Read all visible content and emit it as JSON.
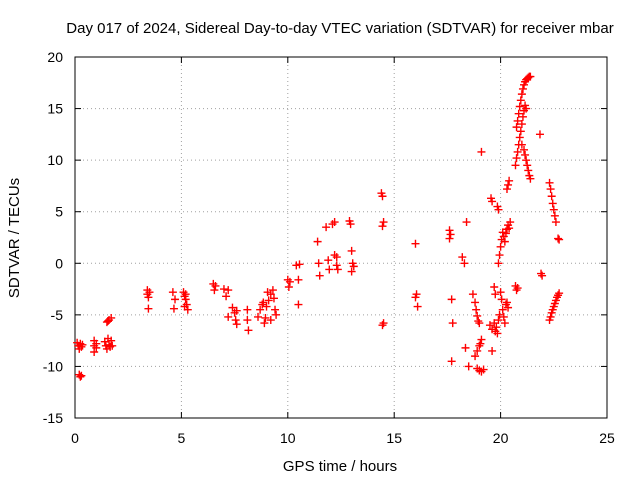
{
  "chart_data": {
    "type": "scatter",
    "title": "Day 017 of 2024, Sidereal Day-to-day VTEC variation (SDTVAR) for receiver mbar",
    "xlabel": "GPS time / hours",
    "ylabel": "SDTVAR / TECUs",
    "xlim": [
      0,
      25
    ],
    "ylim": [
      -15,
      20
    ],
    "xticks": [
      0,
      5,
      10,
      15,
      20,
      25
    ],
    "yticks": [
      -15,
      -10,
      -5,
      0,
      5,
      10,
      15,
      20
    ],
    "x_tick_labels": [
      "0",
      "5",
      "10",
      "15",
      "20",
      "25"
    ],
    "y_tick_labels": [
      "-15",
      "-10",
      "-5",
      "0",
      "5",
      "10",
      "15",
      "20"
    ],
    "grid": true,
    "marker": "plus",
    "color": "#ff0000",
    "series": [
      {
        "name": "SDTVAR",
        "points": [
          [
            0.1,
            -7.7
          ],
          [
            0.15,
            -8.0
          ],
          [
            0.2,
            -8.3
          ],
          [
            0.25,
            -7.8
          ],
          [
            0.3,
            -8.1
          ],
          [
            0.35,
            -7.9
          ],
          [
            0.2,
            -10.8
          ],
          [
            0.25,
            -11.0
          ],
          [
            0.3,
            -10.9
          ],
          [
            0.9,
            -7.5
          ],
          [
            0.9,
            -8.0
          ],
          [
            0.9,
            -8.6
          ],
          [
            1.0,
            -7.8
          ],
          [
            1.0,
            -8.2
          ],
          [
            1.4,
            -7.6
          ],
          [
            1.45,
            -8.0
          ],
          [
            1.5,
            -8.3
          ],
          [
            1.55,
            -7.3
          ],
          [
            1.6,
            -7.9
          ],
          [
            1.65,
            -8.1
          ],
          [
            1.7,
            -7.5
          ],
          [
            1.75,
            -8.0
          ],
          [
            1.5,
            -5.7
          ],
          [
            1.55,
            -5.6
          ],
          [
            1.6,
            -5.5
          ],
          [
            1.7,
            -5.3
          ],
          [
            3.4,
            -2.6
          ],
          [
            3.4,
            -3.0
          ],
          [
            3.45,
            -3.3
          ],
          [
            3.5,
            -2.8
          ],
          [
            3.45,
            -4.4
          ],
          [
            4.6,
            -2.8
          ],
          [
            4.7,
            -3.5
          ],
          [
            4.65,
            -4.4
          ],
          [
            5.1,
            -2.8
          ],
          [
            5.15,
            -3.2
          ],
          [
            5.2,
            -3.5
          ],
          [
            5.25,
            -4.0
          ],
          [
            5.3,
            -4.5
          ],
          [
            5.15,
            -4.2
          ],
          [
            5.2,
            -3.0
          ],
          [
            6.5,
            -2.0
          ],
          [
            6.55,
            -2.6
          ],
          [
            6.6,
            -2.2
          ],
          [
            7.0,
            -2.5
          ],
          [
            7.1,
            -3.2
          ],
          [
            7.2,
            -2.6
          ],
          [
            7.4,
            -4.3
          ],
          [
            7.5,
            -4.8
          ],
          [
            7.55,
            -5.5
          ],
          [
            7.6,
            -5.9
          ],
          [
            7.2,
            -5.2
          ],
          [
            7.6,
            -4.6
          ],
          [
            8.1,
            -4.5
          ],
          [
            8.1,
            -5.5
          ],
          [
            8.15,
            -6.5
          ],
          [
            8.6,
            -5.2
          ],
          [
            8.7,
            -4.5
          ],
          [
            8.8,
            -4.0
          ],
          [
            8.85,
            -3.8
          ],
          [
            8.9,
            -5.8
          ],
          [
            9.0,
            -4.2
          ],
          [
            9.1,
            -3.6
          ],
          [
            9.2,
            -3.0
          ],
          [
            9.3,
            -2.6
          ],
          [
            9.35,
            -3.4
          ],
          [
            9.4,
            -4.5
          ],
          [
            9.45,
            -5.0
          ],
          [
            9.2,
            -5.5
          ],
          [
            8.95,
            -5.3
          ],
          [
            9.05,
            -2.8
          ],
          [
            10.0,
            -1.6
          ],
          [
            10.05,
            -2.3
          ],
          [
            10.1,
            -1.8
          ],
          [
            10.4,
            -0.2
          ],
          [
            10.5,
            -1.6
          ],
          [
            10.55,
            -0.1
          ],
          [
            10.5,
            -4.0
          ],
          [
            11.4,
            2.1
          ],
          [
            11.45,
            0.0
          ],
          [
            11.5,
            -1.2
          ],
          [
            11.8,
            3.5
          ],
          [
            11.9,
            0.3
          ],
          [
            11.95,
            -0.6
          ],
          [
            12.1,
            3.8
          ],
          [
            12.2,
            4.0
          ],
          [
            12.3,
            0.6
          ],
          [
            12.35,
            -0.6
          ],
          [
            12.2,
            0.8
          ],
          [
            12.3,
            -0.2
          ],
          [
            12.9,
            4.1
          ],
          [
            12.95,
            3.8
          ],
          [
            13.0,
            1.2
          ],
          [
            13.05,
            0.0
          ],
          [
            13.0,
            -0.8
          ],
          [
            13.1,
            -0.3
          ],
          [
            14.4,
            6.8
          ],
          [
            14.45,
            6.5
          ],
          [
            14.5,
            4.0
          ],
          [
            14.45,
            3.6
          ],
          [
            14.5,
            -5.8
          ],
          [
            14.45,
            -6.0
          ],
          [
            16.0,
            1.9
          ],
          [
            16.05,
            -3.0
          ],
          [
            16.1,
            -4.2
          ],
          [
            16.0,
            -3.3
          ],
          [
            17.6,
            3.2
          ],
          [
            17.65,
            2.8
          ],
          [
            17.7,
            -3.5
          ],
          [
            17.75,
            -5.8
          ],
          [
            17.7,
            -9.5
          ],
          [
            17.6,
            2.4
          ],
          [
            18.2,
            0.6
          ],
          [
            18.3,
            0.0
          ],
          [
            18.35,
            -8.2
          ],
          [
            18.4,
            4.0
          ],
          [
            18.5,
            -10.0
          ],
          [
            18.7,
            -3.0
          ],
          [
            18.8,
            -3.8
          ],
          [
            18.85,
            -4.5
          ],
          [
            18.9,
            -5.1
          ],
          [
            18.95,
            -5.6
          ],
          [
            19.0,
            -5.8
          ],
          [
            18.8,
            -9.0
          ],
          [
            18.9,
            -8.5
          ],
          [
            19.0,
            -8.0
          ],
          [
            19.05,
            -7.8
          ],
          [
            19.1,
            -7.4
          ],
          [
            18.9,
            -10.2
          ],
          [
            19.0,
            -10.4
          ],
          [
            19.1,
            -10.5
          ],
          [
            19.2,
            -10.3
          ],
          [
            19.1,
            10.8
          ],
          [
            19.55,
            6.3
          ],
          [
            19.6,
            6.0
          ],
          [
            19.7,
            -2.3
          ],
          [
            19.75,
            -3.0
          ],
          [
            19.5,
            -6.0
          ],
          [
            19.6,
            -6.4
          ],
          [
            19.7,
            -5.8
          ],
          [
            19.75,
            -6.6
          ],
          [
            19.8,
            -6.2
          ],
          [
            19.85,
            -6.8
          ],
          [
            19.9,
            -5.5
          ],
          [
            19.95,
            -5.0
          ],
          [
            19.6,
            -8.5
          ],
          [
            19.85,
            5.5
          ],
          [
            19.9,
            5.2
          ],
          [
            19.9,
            0.0
          ],
          [
            19.95,
            0.8
          ],
          [
            20.0,
            1.6
          ],
          [
            20.05,
            2.3
          ],
          [
            20.1,
            3.0
          ],
          [
            20.15,
            2.6
          ],
          [
            20.2,
            2.1
          ],
          [
            20.25,
            2.9
          ],
          [
            20.3,
            3.3
          ],
          [
            20.35,
            3.7
          ],
          [
            20.4,
            3.4
          ],
          [
            20.45,
            4.0
          ],
          [
            20.0,
            -2.8
          ],
          [
            20.05,
            -3.5
          ],
          [
            20.1,
            -4.5
          ],
          [
            20.15,
            -5.2
          ],
          [
            20.2,
            -5.8
          ],
          [
            20.25,
            -4.0
          ],
          [
            20.3,
            -3.8
          ],
          [
            20.35,
            -4.3
          ],
          [
            20.3,
            7.2
          ],
          [
            20.35,
            7.6
          ],
          [
            20.4,
            8.0
          ],
          [
            20.7,
            -2.2
          ],
          [
            20.75,
            -2.6
          ],
          [
            20.8,
            -2.4
          ],
          [
            20.7,
            9.5
          ],
          [
            20.75,
            10.2
          ],
          [
            20.8,
            10.8
          ],
          [
            20.85,
            11.5
          ],
          [
            20.9,
            12.2
          ],
          [
            20.95,
            12.8
          ],
          [
            21.0,
            13.5
          ],
          [
            21.05,
            14.2
          ],
          [
            21.1,
            14.8
          ],
          [
            21.15,
            15.3
          ],
          [
            21.2,
            15.0
          ],
          [
            20.75,
            13.2
          ],
          [
            20.8,
            13.8
          ],
          [
            20.85,
            14.5
          ],
          [
            20.9,
            15.2
          ],
          [
            20.95,
            15.8
          ],
          [
            21.0,
            16.4
          ],
          [
            21.05,
            16.9
          ],
          [
            21.1,
            17.3
          ],
          [
            21.15,
            17.6
          ],
          [
            21.2,
            17.8
          ],
          [
            21.25,
            17.9
          ],
          [
            21.3,
            18.0
          ],
          [
            21.35,
            18.1
          ],
          [
            21.4,
            18.1
          ],
          [
            21.0,
            11.5
          ],
          [
            21.1,
            11.0
          ],
          [
            21.15,
            10.5
          ],
          [
            21.2,
            10.0
          ],
          [
            21.25,
            9.5
          ],
          [
            21.3,
            9.0
          ],
          [
            21.35,
            8.5
          ],
          [
            21.4,
            8.2
          ],
          [
            21.85,
            12.5
          ],
          [
            21.9,
            -1.0
          ],
          [
            21.95,
            -1.2
          ],
          [
            22.3,
            7.8
          ],
          [
            22.35,
            7.2
          ],
          [
            22.4,
            6.5
          ],
          [
            22.45,
            5.8
          ],
          [
            22.5,
            5.2
          ],
          [
            22.55,
            4.6
          ],
          [
            22.6,
            4.0
          ],
          [
            22.3,
            -5.5
          ],
          [
            22.35,
            -5.2
          ],
          [
            22.4,
            -4.8
          ],
          [
            22.45,
            -4.5
          ],
          [
            22.5,
            -4.2
          ],
          [
            22.55,
            -3.9
          ],
          [
            22.6,
            -3.6
          ],
          [
            22.65,
            -3.3
          ],
          [
            22.7,
            -3.1
          ],
          [
            22.75,
            -2.9
          ],
          [
            22.7,
            2.4
          ],
          [
            22.75,
            2.3
          ]
        ]
      }
    ]
  }
}
